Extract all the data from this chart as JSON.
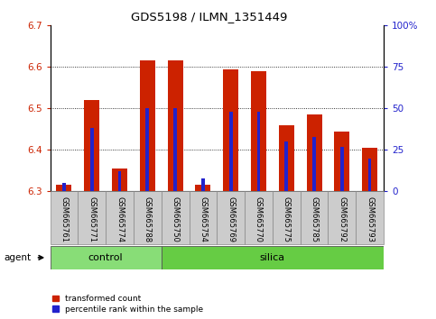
{
  "title": "GDS5198 / ILMN_1351449",
  "samples": [
    "GSM665761",
    "GSM665771",
    "GSM665774",
    "GSM665788",
    "GSM665750",
    "GSM665754",
    "GSM665769",
    "GSM665770",
    "GSM665775",
    "GSM665785",
    "GSM665792",
    "GSM665793"
  ],
  "groups": [
    "control",
    "control",
    "control",
    "control",
    "silica",
    "silica",
    "silica",
    "silica",
    "silica",
    "silica",
    "silica",
    "silica"
  ],
  "red_values": [
    6.315,
    6.52,
    6.355,
    6.615,
    6.615,
    6.315,
    6.595,
    6.59,
    6.46,
    6.485,
    6.445,
    6.405
  ],
  "blue_values_pct": [
    5,
    38,
    12,
    50,
    50,
    8,
    48,
    48,
    30,
    33,
    27,
    20
  ],
  "y_min": 6.3,
  "y_max": 6.7,
  "y_ticks": [
    6.3,
    6.4,
    6.5,
    6.6,
    6.7
  ],
  "right_y_ticks": [
    0,
    25,
    50,
    75,
    100
  ],
  "right_y_labels": [
    "0",
    "25",
    "50",
    "75",
    "100%"
  ],
  "red_bar_width": 0.55,
  "blue_bar_width": 0.12,
  "red_color": "#cc2200",
  "blue_color": "#2222cc",
  "control_color": "#88dd77",
  "silica_color": "#66cc44",
  "bg_color": "#cccccc",
  "control_label": "control",
  "silica_label": "silica",
  "agent_label": "agent",
  "legend_red": "transformed count",
  "legend_blue": "percentile rank within the sample",
  "n_control": 4,
  "n_silica": 8
}
